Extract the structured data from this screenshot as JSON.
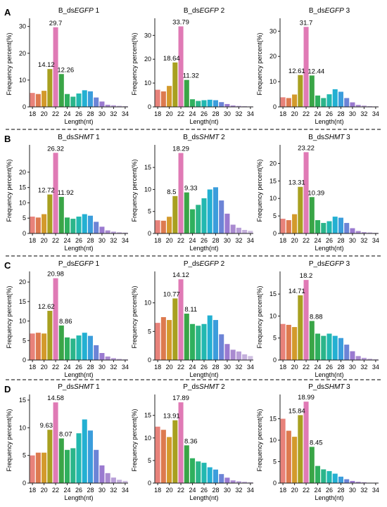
{
  "figure": {
    "rows": [
      {
        "letter": "A",
        "charts": [
          {
            "title_prefix": "B_ds",
            "title_gene": "EGFP",
            "title_rep": "1",
            "ylim": [
              0,
              32
            ],
            "yticks": [
              0,
              10,
              20,
              30
            ],
            "values": [
              5.2,
              4.8,
              6.0,
              14.12,
              29.7,
              12.26,
              4.8,
              3.8,
              5.0,
              6.2,
              5.8,
              3.5,
              2.0,
              0.8,
              0.6,
              0.4,
              0.3
            ],
            "labels": [
              {
                "index": 3,
                "text": "14.12"
              },
              {
                "index": 4,
                "text": "29.7"
              },
              {
                "index": 5,
                "text": "12.26"
              }
            ]
          },
          {
            "title_prefix": "B_ds",
            "title_gene": "EGFP",
            "title_rep": "2",
            "ylim": [
              0,
              36
            ],
            "yticks": [
              0,
              10,
              20,
              30
            ],
            "values": [
              7.2,
              6.5,
              8.8,
              18.64,
              33.79,
              11.32,
              3.2,
              2.5,
              2.8,
              3.0,
              2.8,
              2.0,
              1.2,
              0.6,
              0.4,
              0.3,
              0.2
            ],
            "labels": [
              {
                "index": 3,
                "text": "18.64"
              },
              {
                "index": 4,
                "text": "33.79"
              },
              {
                "index": 5,
                "text": "11.32"
              }
            ]
          },
          {
            "title_prefix": "B_ds",
            "title_gene": "EGFP",
            "title_rep": "3",
            "ylim": [
              0,
              34
            ],
            "yticks": [
              0,
              10,
              20,
              30
            ],
            "values": [
              3.8,
              3.5,
              4.9,
              12.61,
              31.7,
              12.44,
              4.5,
              3.5,
              5.0,
              7.0,
              6.0,
              3.5,
              1.8,
              0.8,
              0.5,
              0.3,
              0.2
            ],
            "labels": [
              {
                "index": 3,
                "text": "12.61"
              },
              {
                "index": 4,
                "text": "31.7"
              },
              {
                "index": 5,
                "text": "12.44"
              }
            ]
          }
        ]
      },
      {
        "letter": "B",
        "charts": [
          {
            "title_prefix": "B_ds",
            "title_gene": "SHMT",
            "title_rep": "1",
            "ylim": [
              0,
              28
            ],
            "yticks": [
              0,
              5,
              10,
              15,
              20
            ],
            "values": [
              5.5,
              5.2,
              6.3,
              12.72,
              26.32,
              11.92,
              5.2,
              4.8,
              5.5,
              6.3,
              5.8,
              3.8,
              2.2,
              1.0,
              0.6,
              0.4,
              0.3
            ],
            "labels": [
              {
                "index": 3,
                "text": "12.72"
              },
              {
                "index": 4,
                "text": "26.32"
              },
              {
                "index": 5,
                "text": "11.92"
              }
            ]
          },
          {
            "title_prefix": "B_ds",
            "title_gene": "SHMT",
            "title_rep": "2",
            "ylim": [
              0,
              19.5
            ],
            "yticks": [
              0,
              5,
              10,
              15
            ],
            "values": [
              3.0,
              2.9,
              3.8,
              8.5,
              18.29,
              9.33,
              5.5,
              6.5,
              8.0,
              10.0,
              10.5,
              7.5,
              4.5,
              2.0,
              1.3,
              0.8,
              0.6
            ],
            "labels": [
              {
                "index": 3,
                "text": "8.5"
              },
              {
                "index": 4,
                "text": "18.29"
              },
              {
                "index": 5,
                "text": "9.33"
              }
            ]
          },
          {
            "title_prefix": "B_ds",
            "title_gene": "SHMT",
            "title_rep": "3",
            "ylim": [
              0,
              24.5
            ],
            "yticks": [
              0,
              5,
              10,
              15,
              20
            ],
            "values": [
              4.2,
              3.8,
              5.5,
              13.31,
              23.22,
              10.39,
              3.8,
              3.0,
              3.5,
              4.8,
              4.5,
              3.0,
              1.5,
              0.7,
              0.4,
              0.3,
              0.2
            ],
            "labels": [
              {
                "index": 3,
                "text": "13.31"
              },
              {
                "index": 4,
                "text": "23.22"
              },
              {
                "index": 5,
                "text": "10.39"
              }
            ]
          }
        ]
      },
      {
        "letter": "C",
        "charts": [
          {
            "title_prefix": "P_ds",
            "title_gene": "EGFP",
            "title_rep": "1",
            "ylim": [
              0,
              22
            ],
            "yticks": [
              0,
              5,
              10,
              15,
              20
            ],
            "values": [
              6.8,
              7.0,
              6.8,
              12.62,
              20.98,
              8.86,
              5.8,
              5.5,
              6.3,
              7.0,
              6.2,
              3.8,
              1.8,
              0.9,
              0.5,
              0.3,
              0.2
            ],
            "labels": [
              {
                "index": 3,
                "text": "12.62"
              },
              {
                "index": 4,
                "text": "20.98"
              },
              {
                "index": 5,
                "text": "8.86"
              }
            ]
          },
          {
            "title_prefix": "P_ds",
            "title_gene": "EGFP",
            "title_rep": "2",
            "ylim": [
              0,
              15
            ],
            "yticks": [
              0,
              5,
              10
            ],
            "values": [
              6.5,
              7.5,
              7.0,
              10.77,
              14.12,
              8.11,
              6.3,
              6.0,
              6.3,
              7.8,
              7.0,
              4.5,
              2.8,
              1.8,
              1.5,
              1.0,
              0.7
            ],
            "labels": [
              {
                "index": 3,
                "text": "10.77"
              },
              {
                "index": 4,
                "text": "14.12"
              },
              {
                "index": 5,
                "text": "8.11"
              }
            ]
          },
          {
            "title_prefix": "P_ds",
            "title_gene": "EGFP",
            "title_rep": "3",
            "ylim": [
              0,
              19.5
            ],
            "yticks": [
              0,
              5,
              10,
              15
            ],
            "values": [
              8.2,
              8.0,
              7.5,
              14.71,
              18.2,
              8.88,
              6.0,
              5.5,
              6.0,
              5.5,
              5.0,
              3.5,
              2.0,
              0.9,
              0.5,
              0.3,
              0.2
            ],
            "labels": [
              {
                "index": 3,
                "text": "14.71"
              },
              {
                "index": 4,
                "text": "18.2"
              },
              {
                "index": 5,
                "text": "8.88"
              }
            ]
          }
        ]
      },
      {
        "letter": "D",
        "charts": [
          {
            "title_prefix": "P_ds",
            "title_gene": "SHMT",
            "title_rep": "1",
            "ylim": [
              0,
              15.5
            ],
            "yticks": [
              0,
              5,
              10,
              15
            ],
            "values": [
              5.0,
              5.5,
              5.5,
              9.63,
              14.58,
              8.07,
              6.0,
              6.3,
              9.0,
              11.5,
              9.5,
              6.0,
              3.2,
              1.8,
              1.0,
              0.6,
              0.4
            ],
            "labels": [
              {
                "index": 3,
                "text": "9.63"
              },
              {
                "index": 4,
                "text": "14.58"
              },
              {
                "index": 5,
                "text": "8.07"
              }
            ]
          },
          {
            "title_prefix": "P_ds",
            "title_gene": "SHMT",
            "title_rep": "2",
            "ylim": [
              0,
              19
            ],
            "yticks": [
              0,
              5,
              10,
              15
            ],
            "values": [
              12.5,
              11.8,
              10.2,
              13.91,
              17.89,
              8.36,
              5.5,
              4.8,
              4.5,
              3.5,
              3.0,
              2.0,
              1.2,
              0.6,
              0.4,
              0.3,
              0.2
            ],
            "labels": [
              {
                "index": 3,
                "text": "13.91"
              },
              {
                "index": 4,
                "text": "17.89"
              },
              {
                "index": 5,
                "text": "8.36"
              }
            ]
          },
          {
            "title_prefix": "P_ds",
            "title_gene": "SHMT",
            "title_rep": "3",
            "ylim": [
              0,
              20
            ],
            "yticks": [
              0,
              5,
              10,
              15
            ],
            "values": [
              15.0,
              12.2,
              10.8,
              15.84,
              18.99,
              8.45,
              4.0,
              3.2,
              2.8,
              2.2,
              1.5,
              0.9,
              0.5,
              0.3,
              0.2,
              0.1,
              0.1
            ],
            "labels": [
              {
                "index": 3,
                "text": "15.84"
              },
              {
                "index": 4,
                "text": "18.99"
              },
              {
                "index": 5,
                "text": "8.45"
              }
            ]
          }
        ]
      }
    ]
  },
  "chart_data": {
    "type": "bar",
    "categories": [
      "18",
      "19",
      "20",
      "21",
      "22",
      "23",
      "24",
      "25",
      "26",
      "27",
      "28",
      "29",
      "30",
      "31",
      "32",
      "33",
      "34"
    ],
    "xtick_labels": [
      "18",
      "20",
      "22",
      "24",
      "26",
      "28",
      "30",
      "32",
      "34"
    ],
    "xlabel": "Length(nt)",
    "ylabel": "Frequency percent(%)",
    "bar_colors": [
      "#e8827a",
      "#dd7a4f",
      "#d39a2b",
      "#a8a020",
      "#e07ab5",
      "#3aa547",
      "#2fb05e",
      "#2bb58a",
      "#22b8b0",
      "#23b0d2",
      "#3b9ddc",
      "#6c84d6",
      "#9a7ad0",
      "#a98ad0",
      "#b89ed8",
      "#c4b0dc",
      "#d0c0e2"
    ],
    "highlight_color": "#ff00cc"
  }
}
